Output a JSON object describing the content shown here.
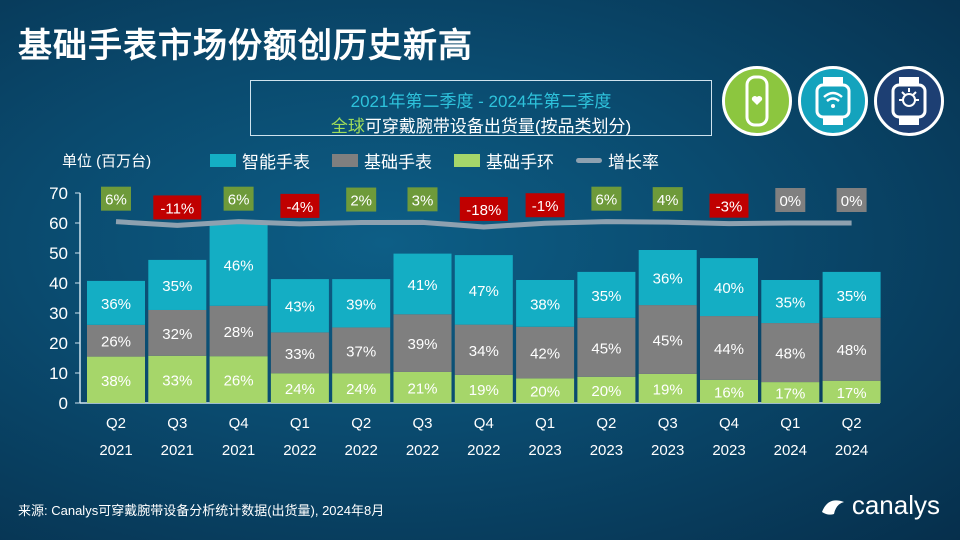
{
  "title": "基础手表市场份额创历史新高",
  "subtitle": {
    "line1": "2021年第二季度 - 2024年第二季度",
    "line2_hl": "全球",
    "line2": "可穿戴腕带设备出货量(按品类划分)"
  },
  "unit_label": "单位 (百万台)",
  "source": "来源: Canalys可穿戴腕带设备分析统计数据(出货量), 2024年8月",
  "logo": "canalys",
  "icons": [
    "fitness-band-icon",
    "smartwatch-wifi-icon",
    "basic-watch-icon"
  ],
  "colors": {
    "smart": "#14aec4",
    "basic_watch": "#7f7f7f",
    "basic_band": "#a6d66a",
    "growth_pos": "#6e9a3a",
    "growth_neg": "#c00000",
    "growth_zero": "#808080",
    "line": "#8ea1b0"
  },
  "chart_data": {
    "type": "bar",
    "stacked": true,
    "ylabel": "单位 (百万台)",
    "ylim": [
      0,
      70
    ],
    "yticks": [
      0,
      10,
      20,
      30,
      40,
      50,
      60,
      70
    ],
    "categories": [
      [
        "Q2",
        "2021"
      ],
      [
        "Q3",
        "2021"
      ],
      [
        "Q4",
        "2021"
      ],
      [
        "Q1",
        "2022"
      ],
      [
        "Q2",
        "2022"
      ],
      [
        "Q3",
        "2022"
      ],
      [
        "Q4",
        "2022"
      ],
      [
        "Q1",
        "2023"
      ],
      [
        "Q2",
        "2023"
      ],
      [
        "Q3",
        "2023"
      ],
      [
        "Q4",
        "2023"
      ],
      [
        "Q1",
        "2024"
      ],
      [
        "Q2",
        "2024"
      ]
    ],
    "totals": [
      40.7,
      47.7,
      60,
      41.3,
      41.3,
      49.3,
      49.3,
      41,
      43.7,
      51,
      48.3,
      41,
      43.7
    ],
    "series": [
      {
        "name": "基础手环",
        "labels": [
          "38%",
          "33%",
          "26%",
          "24%",
          "24%",
          "21%",
          "19%",
          "20%",
          "20%",
          "19%",
          "16%",
          "17%",
          "17%"
        ],
        "shares": [
          38,
          33,
          26,
          24,
          24,
          21,
          19,
          20,
          20,
          19,
          16,
          17,
          17
        ]
      },
      {
        "name": "基础手表",
        "labels": [
          "26%",
          "32%",
          "28%",
          "33%",
          "37%",
          "39%",
          "34%",
          "42%",
          "45%",
          "45%",
          "44%",
          "48%",
          "48%"
        ],
        "shares": [
          26,
          32,
          28,
          33,
          37,
          39,
          34,
          42,
          45,
          45,
          44,
          48,
          48
        ]
      },
      {
        "name": "智能手表",
        "labels": [
          "36%",
          "35%",
          "46%",
          "43%",
          "39%",
          "41%",
          "47%",
          "38%",
          "35%",
          "36%",
          "40%",
          "35%",
          "35%"
        ],
        "shares": [
          36,
          35,
          46,
          43,
          39,
          41,
          47,
          38,
          35,
          36,
          40,
          35,
          35
        ]
      }
    ],
    "growth": {
      "name": "增长率",
      "labels": [
        "6%",
        "-11%",
        "6%",
        "-4%",
        "2%",
        "3%",
        "-18%",
        "-1%",
        "6%",
        "4%",
        "-3%",
        "0%",
        "0%"
      ],
      "values": [
        6,
        -11,
        6,
        -4,
        2,
        3,
        -18,
        -1,
        6,
        4,
        -3,
        0,
        0
      ]
    },
    "legend": [
      "智能手表",
      "基础手表",
      "基础手环",
      "增长率"
    ],
    "legend_position": "top"
  }
}
